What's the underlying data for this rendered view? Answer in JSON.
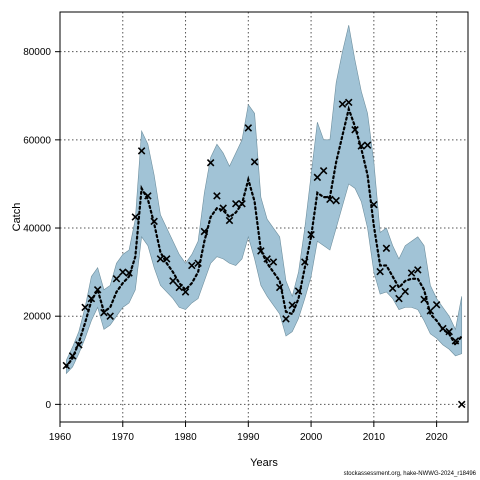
{
  "chart_data": {
    "type": "line",
    "xlabel": "Years",
    "ylabel": "Catch",
    "xlim": [
      1960,
      2025
    ],
    "ylim": [
      -4000,
      89000
    ],
    "xticks": [
      1960,
      1970,
      1980,
      1990,
      2000,
      2010,
      2020
    ],
    "yticks": [
      0,
      20000,
      40000,
      60000,
      80000
    ],
    "grid": true,
    "band_color": "#a1c3d6",
    "band_edge_color": "#6e8f9e",
    "source_note": "stockassessment.org, hake-NWWG-2024_r18496",
    "series": [
      {
        "kind": "band",
        "x": [
          1961,
          1962,
          1963,
          1964,
          1965,
          1966,
          1967,
          1968,
          1969,
          1970,
          1971,
          1972,
          1973,
          1974,
          1975,
          1976,
          1977,
          1978,
          1979,
          1980,
          1981,
          1982,
          1983,
          1984,
          1985,
          1986,
          1987,
          1988,
          1989,
          1990,
          1991,
          1992,
          1993,
          1994,
          1995,
          1996,
          1997,
          1998,
          1999,
          2000,
          2001,
          2002,
          2003,
          2004,
          2005,
          2006,
          2007,
          2008,
          2009,
          2010,
          2011,
          2012,
          2013,
          2014,
          2015,
          2016,
          2017,
          2018,
          2019,
          2020,
          2021,
          2022,
          2023,
          2024
        ],
        "lower": [
          7000,
          8500,
          11500,
          15000,
          19000,
          22000,
          17000,
          18000,
          20000,
          22000,
          23000,
          26000,
          38000,
          36000,
          31000,
          27000,
          25500,
          24000,
          22000,
          21500,
          23000,
          24000,
          28000,
          32000,
          33500,
          33000,
          32000,
          31500,
          33000,
          38000,
          33000,
          27000,
          24500,
          22500,
          20500,
          15500,
          16500,
          19500,
          24000,
          29000,
          37000,
          36000,
          35000,
          40000,
          45000,
          50000,
          49000,
          46000,
          40000,
          30000,
          25000,
          25500,
          24000,
          21500,
          22000,
          22000,
          21500,
          19000,
          16000,
          15000,
          13500,
          12500,
          11000,
          11500
        ],
        "upper": [
          10000,
          13000,
          16500,
          22000,
          29000,
          31000,
          26000,
          27000,
          32000,
          34000,
          35000,
          42000,
          62000,
          59000,
          52000,
          43000,
          40000,
          37000,
          34000,
          32000,
          34000,
          37000,
          48000,
          56000,
          59000,
          57000,
          54000,
          57000,
          60000,
          68000,
          66000,
          47000,
          42000,
          40000,
          38000,
          28000,
          24500,
          30000,
          40000,
          52000,
          64000,
          60000,
          60000,
          73000,
          80000,
          86000,
          78000,
          71000,
          66000,
          55000,
          39000,
          40000,
          36000,
          33000,
          36000,
          37000,
          38000,
          36000,
          27000,
          24000,
          22000,
          20000,
          17000,
          24500
        ]
      },
      {
        "kind": "line",
        "style": "dotted",
        "x": [
          1961,
          1962,
          1963,
          1964,
          1965,
          1966,
          1967,
          1968,
          1969,
          1970,
          1971,
          1972,
          1973,
          1974,
          1975,
          1976,
          1977,
          1978,
          1979,
          1980,
          1981,
          1982,
          1983,
          1984,
          1985,
          1986,
          1987,
          1988,
          1989,
          1990,
          1991,
          1992,
          1993,
          1994,
          1995,
          1996,
          1997,
          1998,
          1999,
          2000,
          2001,
          2002,
          2003,
          2004,
          2005,
          2006,
          2007,
          2008,
          2009,
          2010,
          2011,
          2012,
          2013,
          2014,
          2015,
          2016,
          2017,
          2018,
          2019,
          2020,
          2021,
          2022,
          2023,
          2024
        ],
        "y": [
          8500,
          10500,
          14000,
          18500,
          23500,
          26000,
          21000,
          22000,
          25500,
          27500,
          29000,
          33500,
          49000,
          46500,
          41000,
          34500,
          32000,
          30000,
          27500,
          26000,
          27500,
          30000,
          37000,
          42500,
          44500,
          44000,
          42500,
          43500,
          45500,
          51000,
          46000,
          35000,
          32000,
          30000,
          28000,
          21000,
          20500,
          24000,
          31000,
          38000,
          48000,
          47000,
          47000,
          55000,
          61000,
          67000,
          63000,
          58000,
          52000,
          40500,
          31500,
          31500,
          29000,
          26500,
          28000,
          28500,
          28500,
          26000,
          20500,
          19000,
          17000,
          16000,
          13500,
          15500
        ]
      },
      {
        "kind": "observed",
        "marker": "x",
        "x": [
          1961,
          1962,
          1963,
          1964,
          1965,
          1966,
          1967,
          1968,
          1969,
          1970,
          1971,
          1972,
          1973,
          1974,
          1975,
          1976,
          1977,
          1978,
          1979,
          1980,
          1981,
          1982,
          1983,
          1984,
          1985,
          1986,
          1987,
          1988,
          1989,
          1990,
          1991,
          1992,
          1993,
          1994,
          1995,
          1996,
          1997,
          1998,
          1999,
          2000,
          2001,
          2002,
          2003,
          2004,
          2005,
          2006,
          2007,
          2008,
          2009,
          2010,
          2011,
          2012,
          2013,
          2014,
          2015,
          2016,
          2017,
          2018,
          2019,
          2020,
          2021,
          2022,
          2023,
          2024
        ],
        "y": [
          8800,
          11000,
          13500,
          22000,
          24000,
          26000,
          20800,
          20000,
          28500,
          30000,
          29800,
          42500,
          57500,
          47300,
          41500,
          33000,
          33000,
          28000,
          26500,
          25500,
          31500,
          32000,
          39200,
          54800,
          47300,
          44500,
          41700,
          45500,
          45500,
          62700,
          55000,
          34800,
          33000,
          32300,
          26500,
          19400,
          22500,
          25700,
          32300,
          38500,
          51500,
          53000,
          46500,
          46200,
          68100,
          68500,
          62300,
          58600,
          58800,
          45300,
          30100,
          35400,
          26300,
          24000,
          25600,
          29800,
          30500,
          23800,
          21200,
          22600,
          17200,
          16500,
          14400,
          0
        ]
      }
    ]
  }
}
